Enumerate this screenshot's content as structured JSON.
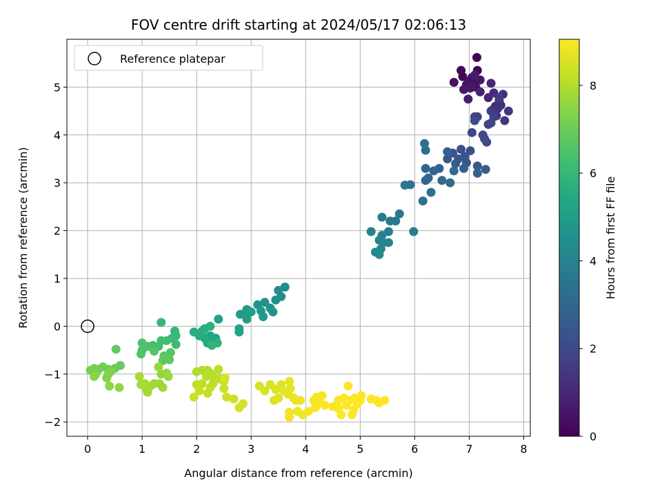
{
  "chart_data": {
    "type": "scatter",
    "title": "FOV centre drift starting at 2024/05/17 02:06:13",
    "xlabel": "Angular distance from reference (arcmin)",
    "ylabel": "Rotation from reference (arcmin)",
    "xlim": [
      -0.38,
      8.12
    ],
    "ylim": [
      -2.3,
      6.0
    ],
    "xticks": [
      0,
      1,
      2,
      3,
      4,
      5,
      6,
      7,
      8
    ],
    "yticks": [
      -2,
      -1,
      0,
      1,
      2,
      3,
      4,
      5
    ],
    "grid": true,
    "legend": {
      "placement": "top-left",
      "entries": [
        {
          "label": "Reference platepar",
          "marker": "open-circle"
        }
      ]
    },
    "reference_point": {
      "x": 0,
      "y": 0
    },
    "colorbar": {
      "label": "Hours from first FF file",
      "min": 0,
      "max": 9.05,
      "ticks": [
        0,
        2,
        4,
        6,
        8
      ],
      "colormap": "viridis",
      "stops": [
        "#440154",
        "#482475",
        "#414487",
        "#355f8d",
        "#2a788e",
        "#21918c",
        "#22a884",
        "#44bf70",
        "#7ad151",
        "#bddf26",
        "#fde725"
      ]
    },
    "points": [
      [
        7.14,
        5.62,
        0.02
      ],
      [
        7.15,
        5.35,
        0.1
      ],
      [
        6.85,
        5.35,
        0.15
      ],
      [
        6.88,
        5.22,
        0.2
      ],
      [
        7.05,
        5.2,
        0.25
      ],
      [
        7.1,
        5.08,
        0.3
      ],
      [
        6.72,
        5.1,
        0.35
      ],
      [
        6.95,
        5.05,
        0.4
      ],
      [
        7.0,
        5.12,
        0.45
      ],
      [
        7.12,
        5.0,
        0.5
      ],
      [
        7.2,
        5.15,
        0.55
      ],
      [
        6.9,
        4.95,
        0.6
      ],
      [
        7.02,
        4.98,
        0.65
      ],
      [
        7.1,
        5.25,
        0.7
      ],
      [
        6.98,
        4.75,
        0.75
      ],
      [
        7.2,
        4.9,
        0.8
      ],
      [
        7.35,
        4.78,
        0.9
      ],
      [
        7.4,
        5.08,
        0.95
      ],
      [
        7.45,
        4.88,
        1.05
      ],
      [
        7.55,
        4.72,
        1.1
      ],
      [
        7.48,
        4.6,
        1.15
      ],
      [
        7.52,
        4.55,
        1.2
      ],
      [
        7.62,
        4.85,
        1.25
      ],
      [
        7.58,
        4.62,
        1.3
      ],
      [
        7.42,
        4.52,
        1.35
      ],
      [
        7.5,
        4.4,
        1.4
      ],
      [
        7.72,
        4.5,
        1.45
      ],
      [
        7.65,
        4.3,
        1.5
      ],
      [
        7.4,
        4.5,
        1.55
      ],
      [
        7.55,
        4.78,
        1.6
      ],
      [
        7.45,
        4.38,
        1.65
      ],
      [
        7.1,
        4.38,
        1.7
      ],
      [
        7.15,
        4.38,
        1.75
      ],
      [
        7.35,
        4.22,
        1.8
      ],
      [
        7.4,
        4.25,
        1.85
      ],
      [
        7.25,
        4.0,
        1.9
      ],
      [
        7.05,
        4.05,
        1.95
      ],
      [
        7.28,
        3.92,
        2.0
      ],
      [
        7.32,
        3.85,
        2.05
      ],
      [
        7.1,
        4.3,
        2.1
      ],
      [
        7.02,
        3.67,
        2.2
      ],
      [
        6.85,
        3.7,
        2.25
      ],
      [
        6.92,
        3.55,
        2.3
      ],
      [
        6.7,
        3.62,
        2.35
      ],
      [
        6.95,
        3.42,
        2.4
      ],
      [
        6.8,
        3.5,
        2.45
      ],
      [
        6.6,
        3.5,
        2.5
      ],
      [
        6.75,
        3.4,
        2.55
      ],
      [
        7.15,
        3.35,
        2.6
      ],
      [
        7.3,
        3.28,
        2.65
      ],
      [
        7.15,
        3.2,
        2.7
      ],
      [
        6.9,
        3.3,
        2.75
      ],
      [
        6.6,
        3.65,
        2.8
      ],
      [
        6.45,
        3.3,
        2.85
      ],
      [
        6.35,
        3.25,
        2.9
      ],
      [
        6.2,
        3.3,
        2.95
      ],
      [
        6.25,
        3.1,
        3.0
      ],
      [
        6.2,
        3.05,
        3.05
      ],
      [
        6.5,
        3.05,
        3.1
      ],
      [
        6.65,
        3.0,
        3.15
      ],
      [
        6.72,
        3.25,
        3.2
      ],
      [
        6.2,
        3.68,
        3.25
      ],
      [
        6.18,
        3.82,
        3.3
      ],
      [
        6.3,
        2.8,
        3.35
      ],
      [
        6.15,
        2.62,
        3.4
      ],
      [
        5.92,
        2.96,
        3.5
      ],
      [
        5.82,
        2.95,
        3.55
      ],
      [
        5.72,
        2.35,
        3.6
      ],
      [
        5.65,
        2.2,
        3.65
      ],
      [
        5.55,
        2.2,
        3.7
      ],
      [
        5.4,
        2.28,
        3.75
      ],
      [
        5.98,
        1.98,
        3.8
      ],
      [
        5.52,
        1.98,
        3.85
      ],
      [
        5.2,
        1.98,
        3.9
      ],
      [
        5.4,
        1.9,
        3.95
      ],
      [
        5.35,
        1.8,
        4.0
      ],
      [
        5.42,
        1.75,
        4.05
      ],
      [
        5.52,
        1.75,
        4.1
      ],
      [
        5.38,
        1.62,
        4.15
      ],
      [
        5.28,
        1.55,
        4.2
      ],
      [
        5.35,
        1.5,
        4.25
      ],
      [
        3.62,
        0.82,
        4.35
      ],
      [
        3.5,
        0.75,
        4.4
      ],
      [
        3.55,
        0.62,
        4.45
      ],
      [
        3.45,
        0.55,
        4.5
      ],
      [
        3.35,
        0.38,
        4.55
      ],
      [
        3.4,
        0.3,
        4.6
      ],
      [
        3.25,
        0.5,
        4.65
      ],
      [
        3.12,
        0.45,
        4.7
      ],
      [
        3.18,
        0.32,
        4.75
      ],
      [
        3.22,
        0.2,
        4.8
      ],
      [
        2.92,
        0.35,
        4.85
      ],
      [
        2.9,
        0.25,
        4.9
      ],
      [
        2.8,
        0.25,
        4.95
      ],
      [
        2.92,
        0.15,
        5.0
      ],
      [
        3.0,
        0.3,
        5.05
      ],
      [
        2.4,
        0.15,
        5.15
      ],
      [
        2.78,
        -0.05,
        5.2
      ],
      [
        2.78,
        -0.12,
        5.25
      ],
      [
        2.35,
        -0.25,
        5.3
      ],
      [
        2.3,
        -0.3,
        5.35
      ],
      [
        2.25,
        -0.2,
        5.4
      ],
      [
        2.2,
        -0.35,
        5.45
      ],
      [
        2.15,
        -0.25,
        5.5
      ],
      [
        2.05,
        -0.2,
        5.55
      ],
      [
        1.95,
        -0.12,
        5.6
      ],
      [
        2.1,
        -0.1,
        5.65
      ],
      [
        2.15,
        -0.05,
        5.7
      ],
      [
        2.25,
        0.0,
        5.75
      ],
      [
        2.38,
        -0.35,
        5.8
      ],
      [
        2.28,
        -0.4,
        5.85
      ],
      [
        1.35,
        0.08,
        5.95
      ],
      [
        1.6,
        -0.1,
        6.0
      ],
      [
        1.62,
        -0.2,
        6.05
      ],
      [
        1.55,
        -0.25,
        6.1
      ],
      [
        1.62,
        -0.38,
        6.15
      ],
      [
        1.45,
        -0.3,
        6.2
      ],
      [
        1.35,
        -0.3,
        6.25
      ],
      [
        1.3,
        -0.42,
        6.3
      ],
      [
        1.2,
        -0.4,
        6.35
      ],
      [
        1.1,
        -0.42,
        6.4
      ],
      [
        1.0,
        -0.35,
        6.45
      ],
      [
        1.0,
        -0.5,
        6.5
      ],
      [
        0.98,
        -0.58,
        6.55
      ],
      [
        1.22,
        -0.52,
        6.6
      ],
      [
        1.52,
        -0.55,
        6.65
      ],
      [
        1.4,
        -0.62,
        6.7
      ],
      [
        1.5,
        -0.7,
        6.75
      ],
      [
        1.38,
        -0.72,
        6.8
      ],
      [
        0.52,
        -0.48,
        6.85
      ],
      [
        0.6,
        -0.82,
        6.9
      ],
      [
        0.5,
        -0.88,
        6.95
      ],
      [
        0.38,
        -0.9,
        7.0
      ],
      [
        0.28,
        -0.85,
        7.05
      ],
      [
        0.2,
        -0.9,
        7.1
      ],
      [
        0.12,
        -0.88,
        7.15
      ],
      [
        0.05,
        -0.92,
        7.2
      ],
      [
        0.15,
        -1.0,
        7.25
      ],
      [
        0.38,
        -1.0,
        7.3
      ],
      [
        0.42,
        -0.95,
        7.35
      ],
      [
        0.35,
        -1.08,
        7.4
      ],
      [
        0.12,
        -1.05,
        7.45
      ],
      [
        0.4,
        -1.25,
        7.5
      ],
      [
        0.58,
        -1.28,
        7.55
      ],
      [
        1.3,
        -0.85,
        7.6
      ],
      [
        1.35,
        -1.0,
        7.62
      ],
      [
        1.45,
        -0.98,
        7.65
      ],
      [
        1.48,
        -1.05,
        7.68
      ],
      [
        1.32,
        -1.2,
        7.7
      ],
      [
        1.38,
        -1.28,
        7.72
      ],
      [
        1.22,
        -1.2,
        7.75
      ],
      [
        1.15,
        -1.25,
        7.78
      ],
      [
        1.08,
        -1.32,
        7.8
      ],
      [
        1.1,
        -1.38,
        7.82
      ],
      [
        0.98,
        -1.22,
        7.85
      ],
      [
        0.95,
        -1.05,
        7.88
      ],
      [
        1.05,
        -1.2,
        7.9
      ],
      [
        2.0,
        -0.95,
        7.95
      ],
      [
        2.1,
        -0.92,
        7.98
      ],
      [
        2.2,
        -0.92,
        8.0
      ],
      [
        2.25,
        -0.98,
        8.02
      ],
      [
        2.4,
        -0.9,
        8.05
      ],
      [
        2.18,
        -1.05,
        8.08
      ],
      [
        2.3,
        -1.05,
        8.1
      ],
      [
        2.42,
        -1.1,
        8.12
      ],
      [
        2.3,
        -1.2,
        8.15
      ],
      [
        2.1,
        -1.2,
        8.18
      ],
      [
        2.0,
        -1.22,
        8.2
      ],
      [
        2.25,
        -1.28,
        8.22
      ],
      [
        2.2,
        -1.4,
        8.25
      ],
      [
        2.05,
        -1.35,
        8.28
      ],
      [
        1.95,
        -1.48,
        8.3
      ],
      [
        2.5,
        -1.15,
        8.32
      ],
      [
        2.5,
        -1.3,
        8.35
      ],
      [
        2.55,
        -1.48,
        8.38
      ],
      [
        2.68,
        -1.52,
        8.4
      ],
      [
        2.85,
        -1.62,
        8.42
      ],
      [
        2.78,
        -1.7,
        8.45
      ],
      [
        2.52,
        -1.08,
        8.48
      ],
      [
        3.15,
        -1.25,
        8.5
      ],
      [
        3.25,
        -1.35,
        8.52
      ],
      [
        3.35,
        -1.22,
        8.55
      ],
      [
        3.45,
        -1.32,
        8.58
      ],
      [
        3.55,
        -1.22,
        8.6
      ],
      [
        3.42,
        -1.55,
        8.62
      ],
      [
        3.5,
        -1.5,
        8.65
      ],
      [
        3.6,
        -1.35,
        8.68
      ],
      [
        3.68,
        -1.42,
        8.7
      ],
      [
        3.7,
        -1.15,
        8.72
      ],
      [
        3.72,
        -1.3,
        8.74
      ],
      [
        3.78,
        -1.5,
        8.76
      ],
      [
        3.82,
        -1.55,
        8.78
      ],
      [
        3.9,
        -1.55,
        8.8
      ],
      [
        3.85,
        -1.78,
        8.82
      ],
      [
        3.95,
        -1.85,
        8.84
      ],
      [
        3.7,
        -1.8,
        8.86
      ],
      [
        3.7,
        -1.9,
        8.88
      ],
      [
        4.05,
        -1.78,
        8.9
      ],
      [
        4.15,
        -1.55,
        8.92
      ],
      [
        4.2,
        -1.48,
        8.94
      ],
      [
        4.3,
        -1.45,
        8.96
      ],
      [
        4.25,
        -1.6,
        8.97
      ],
      [
        4.18,
        -1.7,
        8.98
      ],
      [
        4.35,
        -1.65,
        8.99
      ],
      [
        4.5,
        -1.68,
        9.0
      ],
      [
        4.6,
        -1.55,
        9.0
      ],
      [
        4.6,
        -1.72,
        9.01
      ],
      [
        4.7,
        -1.5,
        9.01
      ],
      [
        4.65,
        -1.85,
        9.02
      ],
      [
        4.75,
        -1.65,
        9.02
      ],
      [
        4.8,
        -1.55,
        9.02
      ],
      [
        4.9,
        -1.5,
        9.03
      ],
      [
        4.88,
        -1.75,
        9.03
      ],
      [
        4.95,
        -1.62,
        9.03
      ],
      [
        5.0,
        -1.55,
        9.04
      ],
      [
        5.02,
        -1.45,
        9.04
      ],
      [
        4.78,
        -1.25,
        9.04
      ],
      [
        4.85,
        -1.85,
        9.04
      ],
      [
        5.2,
        -1.52,
        9.05
      ],
      [
        5.3,
        -1.55,
        9.05
      ],
      [
        5.35,
        -1.6,
        9.05
      ],
      [
        5.45,
        -1.55,
        9.05
      ]
    ]
  }
}
